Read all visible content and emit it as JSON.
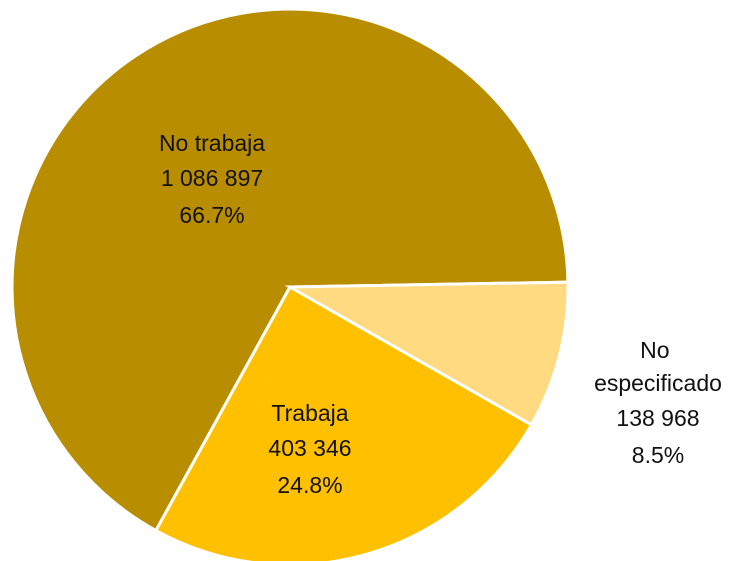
{
  "chart_data": {
    "type": "pie",
    "categories": [
      "No trabaja",
      "Trabaja",
      "No especificado"
    ],
    "values": [
      1086897,
      403346,
      138968
    ],
    "value_labels": [
      "1 086 897",
      "403 346",
      "138 968"
    ],
    "percent_labels": [
      "66.7%",
      "24.8%",
      "8.5%"
    ],
    "colors": [
      "#b88e00",
      "#ffc000",
      "#ffda80"
    ]
  }
}
